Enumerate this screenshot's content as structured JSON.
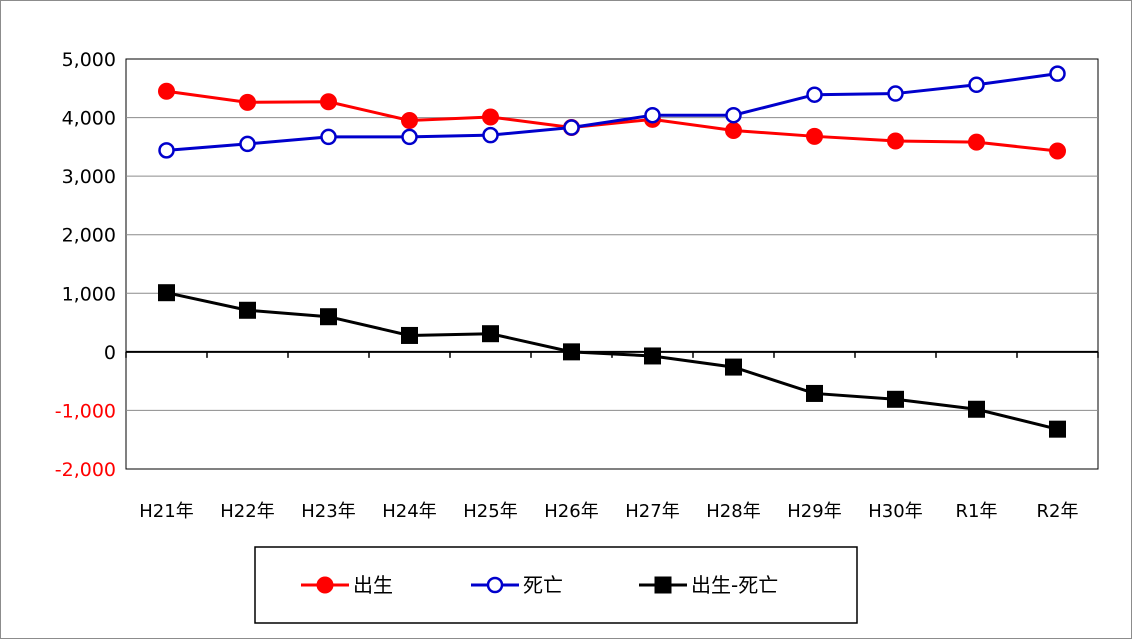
{
  "chart_data": {
    "type": "line",
    "categories": [
      "H21年",
      "H22年",
      "H23年",
      "H24年",
      "H25年",
      "H26年",
      "H27年",
      "H28年",
      "H29年",
      "H30年",
      "R1年",
      "R2年"
    ],
    "ylim": [
      -2000,
      5000
    ],
    "yticks": [
      "5,000",
      "4,000",
      "3,000",
      "2,000",
      "1,000",
      "0",
      "-1,000",
      "-2,000"
    ],
    "ytick_values": [
      5000,
      4000,
      3000,
      2000,
      1000,
      0,
      -1000,
      -2000
    ],
    "negative_tick_color": "#ff0000",
    "grid": true,
    "legend_position": "bottom",
    "series": [
      {
        "name": "出生",
        "color": "#ff0000",
        "marker": "filled-circle",
        "values": [
          4450,
          4260,
          4270,
          3950,
          4010,
          3830,
          3970,
          3780,
          3680,
          3600,
          3580,
          3430
        ]
      },
      {
        "name": "死亡",
        "color": "#0000cc",
        "marker": "open-circle",
        "values": [
          3440,
          3550,
          3670,
          3670,
          3700,
          3830,
          4040,
          4040,
          4390,
          4410,
          4560,
          4750
        ]
      },
      {
        "name": "出生-死亡",
        "color": "#000000",
        "marker": "filled-square",
        "values": [
          1010,
          710,
          600,
          280,
          310,
          0,
          -70,
          -260,
          -710,
          -810,
          -980,
          -1320
        ]
      }
    ]
  }
}
